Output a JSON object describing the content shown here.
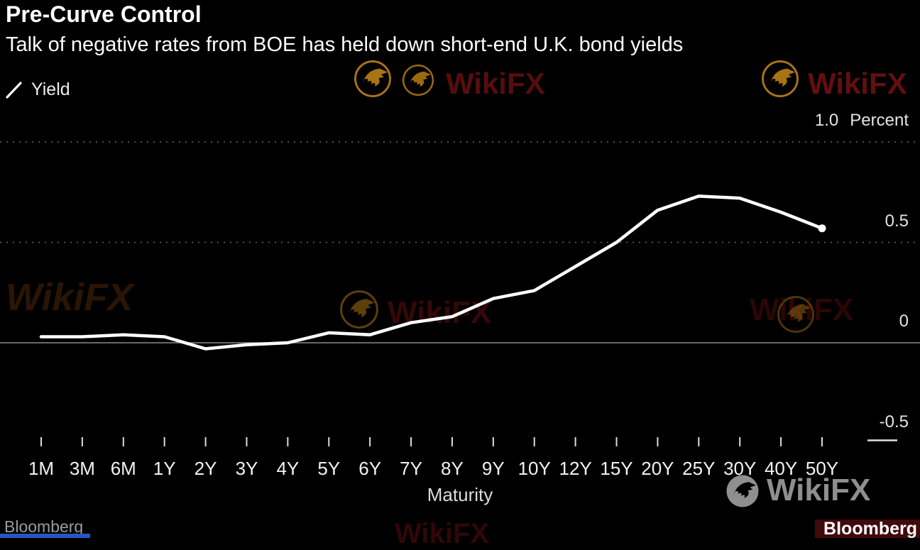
{
  "header": {
    "title": "Pre-Curve Control",
    "subtitle": "Talk of negative rates from BOE has held down short-end U.K. bond yields"
  },
  "legend": {
    "label": "Yield"
  },
  "chart_data": {
    "type": "line",
    "title": "Pre-Curve Control",
    "subtitle": "Talk of negative rates from BOE has held down short-end U.K. bond yields",
    "xlabel": "Maturity",
    "ylabel": "Percent",
    "categories": [
      "1M",
      "3M",
      "6M",
      "1Y",
      "2Y",
      "3Y",
      "4Y",
      "5Y",
      "6Y",
      "7Y",
      "8Y",
      "9Y",
      "10Y",
      "12Y",
      "15Y",
      "20Y",
      "25Y",
      "30Y",
      "40Y",
      "50Y"
    ],
    "series": [
      {
        "name": "Yield",
        "values": [
          0.03,
          0.03,
          0.04,
          0.03,
          -0.03,
          -0.01,
          0.0,
          0.05,
          0.04,
          0.1,
          0.13,
          0.22,
          0.26,
          0.38,
          0.5,
          0.66,
          0.73,
          0.72,
          0.65,
          0.57
        ]
      }
    ],
    "y_ticks": [
      {
        "label": "1.0",
        "suffix": "Percent",
        "value": 1.0
      },
      {
        "label": "0.5",
        "value": 0.5
      },
      {
        "label": "0",
        "value": 0.0
      },
      {
        "label": "-0.5",
        "value": -0.5
      }
    ],
    "ylim": [
      -0.75,
      1.12
    ],
    "grid": "horizontal dashed at 1.0 and 0.5, solid zero line, short segment at -0.5",
    "legend_position": "top-left",
    "line_color": "#ffffff",
    "end_marker": "dot"
  },
  "footer": {
    "source": "Bloomberg",
    "brand_bar": "Bloomberg"
  },
  "watermark": {
    "text": "WikiFX",
    "brand": "WikiFX"
  },
  "colors": {
    "background": "#000000",
    "line": "#ffffff",
    "grid": "#6a6a6a",
    "zero_line": "#8a8a8a",
    "axis_text": "#e6e6e6",
    "muted_text": "#9a9a9a",
    "watermark_gold": "#a87414",
    "watermark_red": "#5a0e0e",
    "brand_bar_bg": "#40090c",
    "blue_strip": "#2456c4"
  }
}
